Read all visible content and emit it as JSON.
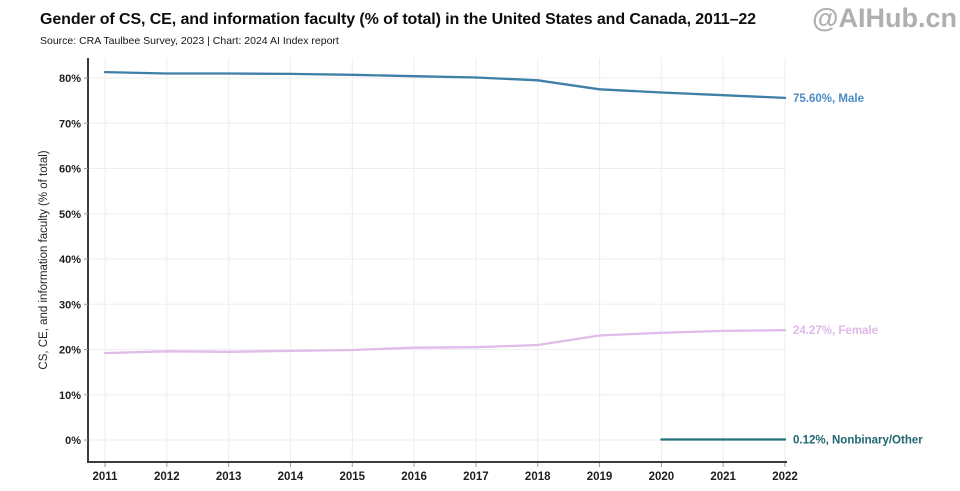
{
  "header": {
    "source_line": "Source: CRA Taulbee Survey, 2023 | Chart: 2024 AI Index report",
    "watermark": "@AIHub.cn",
    "watermark_color": "#a9a9a9"
  },
  "chart_data": {
    "type": "line",
    "title": "Gender of CS, CE, and information faculty (% of total) in the United States and Canada, 2011–22",
    "xlabel": "",
    "ylabel": "CS, CE, and information faculty (% of total)",
    "x": [
      2011,
      2012,
      2013,
      2014,
      2015,
      2016,
      2017,
      2018,
      2019,
      2020,
      2021,
      2022
    ],
    "xlim": [
      2011,
      2022
    ],
    "ylim": [
      0,
      80
    ],
    "yticks": [
      0,
      10,
      20,
      30,
      40,
      50,
      60,
      70,
      80
    ],
    "ytick_suffix": "%",
    "grid": true,
    "grid_color": "#efedef",
    "axis_color": "#3b3b3b",
    "tick_color": "#9a9a9a",
    "tick_label_color": "#1f1f1f",
    "axis_title_color": "#222222",
    "legend_position": "end-of-line labels, right of plot",
    "series": [
      {
        "name": "Male",
        "color": "#3d7fa6",
        "label": "75.60%, Male",
        "label_color": "#4a8dc6",
        "values": [
          81.3,
          81.0,
          81.0,
          80.9,
          80.7,
          80.4,
          80.1,
          79.5,
          77.5,
          76.8,
          76.2,
          75.6
        ]
      },
      {
        "name": "Female",
        "color": "#dfbcea",
        "label": "24.27%, Female",
        "label_color": "#dfb8e8",
        "values": [
          19.2,
          19.6,
          19.5,
          19.7,
          19.9,
          20.4,
          20.5,
          21.0,
          23.1,
          23.7,
          24.1,
          24.27
        ]
      },
      {
        "name": "Nonbinary/Other",
        "color": "#25717a",
        "label": "0.12%, Nonbinary/Other",
        "label_color": "#20666f",
        "values": [
          null,
          null,
          null,
          null,
          null,
          null,
          null,
          null,
          null,
          0.1,
          0.1,
          0.12
        ]
      }
    ]
  }
}
